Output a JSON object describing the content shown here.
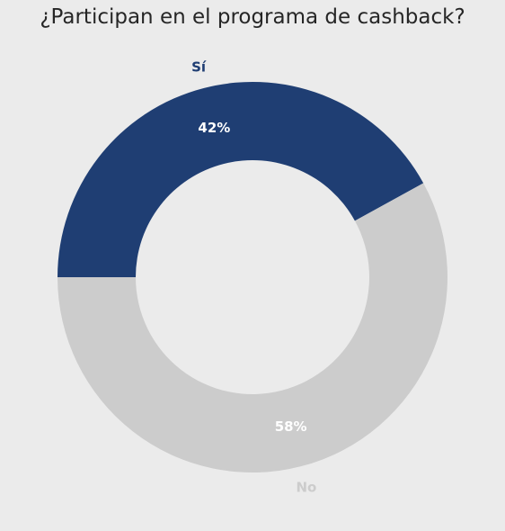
{
  "chart_data": {
    "type": "pie",
    "title": "¿Participan en el programa de cashback?",
    "donut": true,
    "slices": [
      {
        "label": "Sí",
        "value": 42,
        "value_label": "42%",
        "color": "#1f3e73"
      },
      {
        "label": "No",
        "value": 58,
        "value_label": "58%",
        "color": "#cccccc"
      }
    ],
    "background_color": "#ebebeb"
  }
}
